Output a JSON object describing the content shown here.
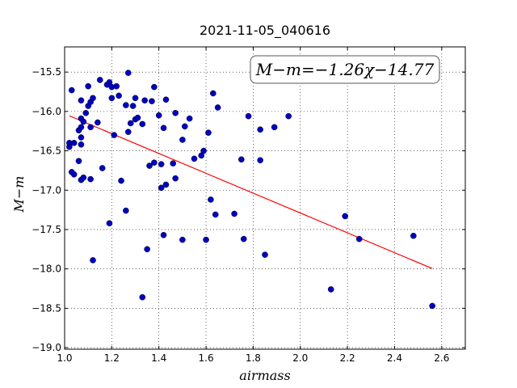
{
  "chart_data": {
    "type": "scatter",
    "title": "2021-11-05_040616",
    "xlabel": "airmass",
    "ylabel": "M−m",
    "xlim": [
      1.0,
      2.7
    ],
    "ylim": [
      -19.02,
      -15.18
    ],
    "inverted_y": true,
    "grid": true,
    "grid_style": "dotted",
    "x_ticks": [
      1.0,
      1.2,
      1.4,
      1.6,
      1.8,
      2.0,
      2.2,
      2.4,
      2.6
    ],
    "x_tick_labels": [
      "1.0",
      "1.2",
      "1.4",
      "1.6",
      "1.8",
      "2.0",
      "2.2",
      "2.4",
      "2.6"
    ],
    "y_ticks": [
      -15.5,
      -16.0,
      -16.5,
      -17.0,
      -17.5,
      -18.0,
      -18.5,
      -19.0
    ],
    "y_tick_labels": [
      "−15.5",
      "−16.0",
      "−16.5",
      "−17.0",
      "−17.5",
      "−18.0",
      "−18.5",
      "−19.0"
    ],
    "annotation": "M−m=−1.26χ−14.77",
    "fit": {
      "slope": -1.26,
      "intercept": -14.77,
      "x_range": [
        1.02,
        2.56
      ],
      "color": "#ff0000"
    },
    "point_color": "#0000bf",
    "points": [
      {
        "x": 1.02,
        "y": -16.4
      },
      {
        "x": 1.02,
        "y": -16.45
      },
      {
        "x": 1.03,
        "y": -15.73
      },
      {
        "x": 1.03,
        "y": -16.77
      },
      {
        "x": 1.04,
        "y": -16.4
      },
      {
        "x": 1.04,
        "y": -16.8
      },
      {
        "x": 1.06,
        "y": -16.63
      },
      {
        "x": 1.06,
        "y": -16.24
      },
      {
        "x": 1.07,
        "y": -15.86
      },
      {
        "x": 1.07,
        "y": -16.09
      },
      {
        "x": 1.07,
        "y": -16.2
      },
      {
        "x": 1.07,
        "y": -16.33
      },
      {
        "x": 1.07,
        "y": -16.42
      },
      {
        "x": 1.07,
        "y": -16.87
      },
      {
        "x": 1.08,
        "y": -16.84
      },
      {
        "x": 1.08,
        "y": -16.13
      },
      {
        "x": 1.09,
        "y": -16.02
      },
      {
        "x": 1.1,
        "y": -15.68
      },
      {
        "x": 1.1,
        "y": -15.93
      },
      {
        "x": 1.11,
        "y": -15.88
      },
      {
        "x": 1.11,
        "y": -16.2
      },
      {
        "x": 1.11,
        "y": -16.86
      },
      {
        "x": 1.12,
        "y": -17.89
      },
      {
        "x": 1.12,
        "y": -15.83
      },
      {
        "x": 1.14,
        "y": -16.14
      },
      {
        "x": 1.15,
        "y": -15.6
      },
      {
        "x": 1.16,
        "y": -16.72
      },
      {
        "x": 1.18,
        "y": -15.66
      },
      {
        "x": 1.19,
        "y": -15.63
      },
      {
        "x": 1.2,
        "y": -15.83
      },
      {
        "x": 1.2,
        "y": -15.69
      },
      {
        "x": 1.19,
        "y": -17.42
      },
      {
        "x": 1.21,
        "y": -16.3
      },
      {
        "x": 1.22,
        "y": -15.68
      },
      {
        "x": 1.23,
        "y": -15.8
      },
      {
        "x": 1.24,
        "y": -16.88
      },
      {
        "x": 1.26,
        "y": -15.92
      },
      {
        "x": 1.26,
        "y": -17.26
      },
      {
        "x": 1.27,
        "y": -15.51
      },
      {
        "x": 1.27,
        "y": -16.26
      },
      {
        "x": 1.28,
        "y": -16.15
      },
      {
        "x": 1.29,
        "y": -15.93
      },
      {
        "x": 1.3,
        "y": -15.83
      },
      {
        "x": 1.3,
        "y": -16.1
      },
      {
        "x": 1.31,
        "y": -16.08
      },
      {
        "x": 1.33,
        "y": -16.16
      },
      {
        "x": 1.33,
        "y": -18.36
      },
      {
        "x": 1.34,
        "y": -15.86
      },
      {
        "x": 1.35,
        "y": -17.75
      },
      {
        "x": 1.36,
        "y": -16.69
      },
      {
        "x": 1.37,
        "y": -15.87
      },
      {
        "x": 1.38,
        "y": -15.69
      },
      {
        "x": 1.38,
        "y": -16.65
      },
      {
        "x": 1.4,
        "y": -16.05
      },
      {
        "x": 1.41,
        "y": -16.67
      },
      {
        "x": 1.41,
        "y": -16.97
      },
      {
        "x": 1.42,
        "y": -16.21
      },
      {
        "x": 1.42,
        "y": -17.57
      },
      {
        "x": 1.43,
        "y": -15.85
      },
      {
        "x": 1.43,
        "y": -16.93
      },
      {
        "x": 1.46,
        "y": -16.66
      },
      {
        "x": 1.47,
        "y": -16.02
      },
      {
        "x": 1.47,
        "y": -16.85
      },
      {
        "x": 1.5,
        "y": -16.36
      },
      {
        "x": 1.5,
        "y": -17.63
      },
      {
        "x": 1.51,
        "y": -16.19
      },
      {
        "x": 1.53,
        "y": -16.09
      },
      {
        "x": 1.55,
        "y": -16.6
      },
      {
        "x": 1.58,
        "y": -16.56
      },
      {
        "x": 1.59,
        "y": -16.5
      },
      {
        "x": 1.6,
        "y": -17.63
      },
      {
        "x": 1.61,
        "y": -16.27
      },
      {
        "x": 1.62,
        "y": -17.12
      },
      {
        "x": 1.63,
        "y": -15.77
      },
      {
        "x": 1.64,
        "y": -17.31
      },
      {
        "x": 1.65,
        "y": -15.95
      },
      {
        "x": 1.72,
        "y": -17.3
      },
      {
        "x": 1.75,
        "y": -16.61
      },
      {
        "x": 1.76,
        "y": -17.62
      },
      {
        "x": 1.78,
        "y": -16.06
      },
      {
        "x": 1.83,
        "y": -16.23
      },
      {
        "x": 1.83,
        "y": -16.62
      },
      {
        "x": 1.85,
        "y": -17.82
      },
      {
        "x": 1.89,
        "y": -16.2
      },
      {
        "x": 1.95,
        "y": -16.06
      },
      {
        "x": 2.13,
        "y": -18.26
      },
      {
        "x": 2.19,
        "y": -17.33
      },
      {
        "x": 2.25,
        "y": -17.62
      },
      {
        "x": 2.48,
        "y": -17.58
      },
      {
        "x": 2.56,
        "y": -18.47
      }
    ]
  }
}
